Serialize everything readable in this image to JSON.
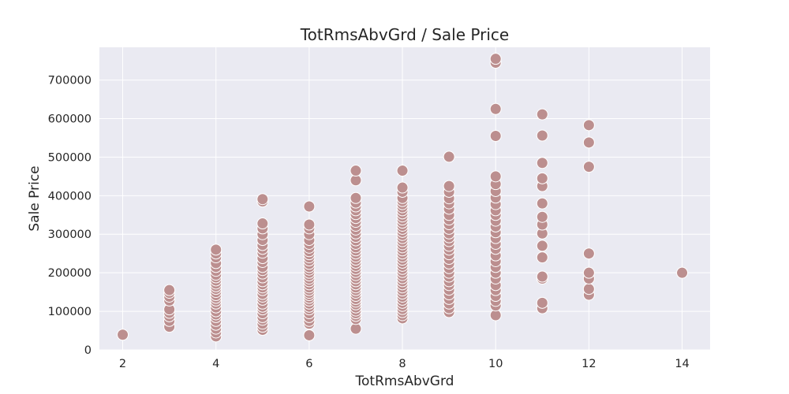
{
  "chart_data": {
    "type": "scatter",
    "title": "TotRmsAbvGrd / Sale Price",
    "xlabel": "TotRmsAbvGrd",
    "ylabel": "Sale Price",
    "xlim": [
      1.5,
      14.6
    ],
    "ylim": [
      0,
      785000
    ],
    "x_ticks": [
      2,
      4,
      6,
      8,
      10,
      12,
      14
    ],
    "y_ticks": [
      0,
      100000,
      200000,
      300000,
      400000,
      500000,
      600000,
      700000
    ],
    "grid": true,
    "colors": {
      "marker": "#bc8f8f",
      "marker_edge": "#ffffff",
      "background": "#eaeaf2",
      "grid": "#ffffff",
      "text": "#262626"
    },
    "series": [
      {
        "points": [
          [
            2,
            39300
          ],
          [
            3,
            60000
          ],
          [
            3,
            75000
          ],
          [
            3,
            87000
          ],
          [
            3,
            96000
          ],
          [
            3,
            105000
          ],
          [
            3,
            128000
          ],
          [
            3,
            138000
          ],
          [
            3,
            148000
          ],
          [
            3,
            155000
          ],
          [
            4,
            35000
          ],
          [
            4,
            45000
          ],
          [
            4,
            55000
          ],
          [
            4,
            65000
          ],
          [
            4,
            75000
          ],
          [
            4,
            85000
          ],
          [
            4,
            92000
          ],
          [
            4,
            100000
          ],
          [
            4,
            110000
          ],
          [
            4,
            120000
          ],
          [
            4,
            128000
          ],
          [
            4,
            135000
          ],
          [
            4,
            142000
          ],
          [
            4,
            150000
          ],
          [
            4,
            158000
          ],
          [
            4,
            165000
          ],
          [
            4,
            172000
          ],
          [
            4,
            180000
          ],
          [
            4,
            188000
          ],
          [
            4,
            195000
          ],
          [
            4,
            205000
          ],
          [
            4,
            215000
          ],
          [
            4,
            225000
          ],
          [
            4,
            240000
          ],
          [
            4,
            250000
          ],
          [
            4,
            260000
          ],
          [
            5,
            52000
          ],
          [
            5,
            60000
          ],
          [
            5,
            68000
          ],
          [
            5,
            78000
          ],
          [
            5,
            85000
          ],
          [
            5,
            95000
          ],
          [
            5,
            105000
          ],
          [
            5,
            112000
          ],
          [
            5,
            120000
          ],
          [
            5,
            130000
          ],
          [
            5,
            138000
          ],
          [
            5,
            145000
          ],
          [
            5,
            155000
          ],
          [
            5,
            162000
          ],
          [
            5,
            170000
          ],
          [
            5,
            178000
          ],
          [
            5,
            188000
          ],
          [
            5,
            198000
          ],
          [
            5,
            207000
          ],
          [
            5,
            215000
          ],
          [
            5,
            228000
          ],
          [
            5,
            238000
          ],
          [
            5,
            252000
          ],
          [
            5,
            262000
          ],
          [
            5,
            272000
          ],
          [
            5,
            285000
          ],
          [
            5,
            300000
          ],
          [
            5,
            315000
          ],
          [
            5,
            328000
          ],
          [
            5,
            385000
          ],
          [
            5,
            391000
          ],
          [
            6,
            37900
          ],
          [
            6,
            68000
          ],
          [
            6,
            75000
          ],
          [
            6,
            85000
          ],
          [
            6,
            95000
          ],
          [
            6,
            105000
          ],
          [
            6,
            112000
          ],
          [
            6,
            120000
          ],
          [
            6,
            128000
          ],
          [
            6,
            135000
          ],
          [
            6,
            142000
          ],
          [
            6,
            148000
          ],
          [
            6,
            155000
          ],
          [
            6,
            162000
          ],
          [
            6,
            170000
          ],
          [
            6,
            178000
          ],
          [
            6,
            185000
          ],
          [
            6,
            193000
          ],
          [
            6,
            200000
          ],
          [
            6,
            208000
          ],
          [
            6,
            215000
          ],
          [
            6,
            223000
          ],
          [
            6,
            232000
          ],
          [
            6,
            240000
          ],
          [
            6,
            248000
          ],
          [
            6,
            256000
          ],
          [
            6,
            265000
          ],
          [
            6,
            275000
          ],
          [
            6,
            285000
          ],
          [
            6,
            300000
          ],
          [
            6,
            315000
          ],
          [
            6,
            325000
          ],
          [
            6,
            372000
          ],
          [
            7,
            55000
          ],
          [
            7,
            80000
          ],
          [
            7,
            88000
          ],
          [
            7,
            95000
          ],
          [
            7,
            102000
          ],
          [
            7,
            110000
          ],
          [
            7,
            118000
          ],
          [
            7,
            125000
          ],
          [
            7,
            132000
          ],
          [
            7,
            140000
          ],
          [
            7,
            148000
          ],
          [
            7,
            155000
          ],
          [
            7,
            162000
          ],
          [
            7,
            170000
          ],
          [
            7,
            178000
          ],
          [
            7,
            186000
          ],
          [
            7,
            194000
          ],
          [
            7,
            202000
          ],
          [
            7,
            210000
          ],
          [
            7,
            218000
          ],
          [
            7,
            226000
          ],
          [
            7,
            234000
          ],
          [
            7,
            242000
          ],
          [
            7,
            250000
          ],
          [
            7,
            258000
          ],
          [
            7,
            266000
          ],
          [
            7,
            275000
          ],
          [
            7,
            284000
          ],
          [
            7,
            293000
          ],
          [
            7,
            302000
          ],
          [
            7,
            312000
          ],
          [
            7,
            322000
          ],
          [
            7,
            332000
          ],
          [
            7,
            342000
          ],
          [
            7,
            352000
          ],
          [
            7,
            362000
          ],
          [
            7,
            372000
          ],
          [
            7,
            382000
          ],
          [
            7,
            394000
          ],
          [
            7,
            440000
          ],
          [
            7,
            465000
          ],
          [
            8,
            82000
          ],
          [
            8,
            90000
          ],
          [
            8,
            98000
          ],
          [
            8,
            106000
          ],
          [
            8,
            114000
          ],
          [
            8,
            122000
          ],
          [
            8,
            130000
          ],
          [
            8,
            138000
          ],
          [
            8,
            146000
          ],
          [
            8,
            154000
          ],
          [
            8,
            162000
          ],
          [
            8,
            170000
          ],
          [
            8,
            178000
          ],
          [
            8,
            186000
          ],
          [
            8,
            194000
          ],
          [
            8,
            202000
          ],
          [
            8,
            210000
          ],
          [
            8,
            218000
          ],
          [
            8,
            226000
          ],
          [
            8,
            234000
          ],
          [
            8,
            242000
          ],
          [
            8,
            250000
          ],
          [
            8,
            258000
          ],
          [
            8,
            266000
          ],
          [
            8,
            274000
          ],
          [
            8,
            282000
          ],
          [
            8,
            290000
          ],
          [
            8,
            298000
          ],
          [
            8,
            306000
          ],
          [
            8,
            314000
          ],
          [
            8,
            322000
          ],
          [
            8,
            330000
          ],
          [
            8,
            338000
          ],
          [
            8,
            346000
          ],
          [
            8,
            354000
          ],
          [
            8,
            362000
          ],
          [
            8,
            370000
          ],
          [
            8,
            378000
          ],
          [
            8,
            386000
          ],
          [
            8,
            394000
          ],
          [
            8,
            410000
          ],
          [
            8,
            421000
          ],
          [
            8,
            465000
          ],
          [
            9,
            98000
          ],
          [
            9,
            108000
          ],
          [
            9,
            120000
          ],
          [
            9,
            132000
          ],
          [
            9,
            144000
          ],
          [
            9,
            156000
          ],
          [
            9,
            168000
          ],
          [
            9,
            178000
          ],
          [
            9,
            190000
          ],
          [
            9,
            200000
          ],
          [
            9,
            212000
          ],
          [
            9,
            224000
          ],
          [
            9,
            236000
          ],
          [
            9,
            248000
          ],
          [
            9,
            260000
          ],
          [
            9,
            270000
          ],
          [
            9,
            282000
          ],
          [
            9,
            292000
          ],
          [
            9,
            302000
          ],
          [
            9,
            314000
          ],
          [
            9,
            326000
          ],
          [
            9,
            338000
          ],
          [
            9,
            350000
          ],
          [
            9,
            366000
          ],
          [
            9,
            380000
          ],
          [
            9,
            393000
          ],
          [
            9,
            410000
          ],
          [
            9,
            425000
          ],
          [
            9,
            501000
          ],
          [
            10,
            90000
          ],
          [
            10,
            115000
          ],
          [
            10,
            127000
          ],
          [
            10,
            140000
          ],
          [
            10,
            155000
          ],
          [
            10,
            168000
          ],
          [
            10,
            185000
          ],
          [
            10,
            200000
          ],
          [
            10,
            215000
          ],
          [
            10,
            230000
          ],
          [
            10,
            245000
          ],
          [
            10,
            262000
          ],
          [
            10,
            275000
          ],
          [
            10,
            290000
          ],
          [
            10,
            305000
          ],
          [
            10,
            320000
          ],
          [
            10,
            335000
          ],
          [
            10,
            350000
          ],
          [
            10,
            362000
          ],
          [
            10,
            378000
          ],
          [
            10,
            395000
          ],
          [
            10,
            412000
          ],
          [
            10,
            430000
          ],
          [
            10,
            450000
          ],
          [
            10,
            555000
          ],
          [
            10,
            625000
          ],
          [
            10,
            745000
          ],
          [
            10,
            755000
          ],
          [
            11,
            108000
          ],
          [
            11,
            122000
          ],
          [
            11,
            185000
          ],
          [
            11,
            190000
          ],
          [
            11,
            240000
          ],
          [
            11,
            270000
          ],
          [
            11,
            302000
          ],
          [
            11,
            325000
          ],
          [
            11,
            345000
          ],
          [
            11,
            380000
          ],
          [
            11,
            425000
          ],
          [
            11,
            445000
          ],
          [
            11,
            485000
          ],
          [
            11,
            556000
          ],
          [
            11,
            611000
          ],
          [
            12,
            143000
          ],
          [
            12,
            158000
          ],
          [
            12,
            185000
          ],
          [
            12,
            200000
          ],
          [
            12,
            250000
          ],
          [
            12,
            475000
          ],
          [
            12,
            538000
          ],
          [
            12,
            583000
          ],
          [
            14,
            200000
          ]
        ]
      }
    ]
  }
}
